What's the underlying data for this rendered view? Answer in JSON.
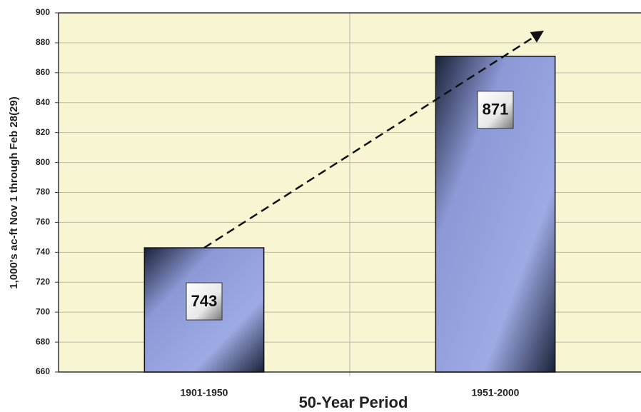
{
  "chart_data": {
    "type": "bar",
    "categories": [
      "1901-1950",
      "1951-2000"
    ],
    "values": [
      743,
      871
    ],
    "color": "#9aa6e0",
    "xlabel": "50-Year Period",
    "ylabel": "1,000's ac-ft Nov 1 through Feb 28(29)",
    "ylim": [
      660,
      900
    ],
    "yticks": [
      660,
      680,
      700,
      720,
      740,
      760,
      780,
      800,
      820,
      840,
      860,
      880,
      900
    ],
    "grid": true
  }
}
